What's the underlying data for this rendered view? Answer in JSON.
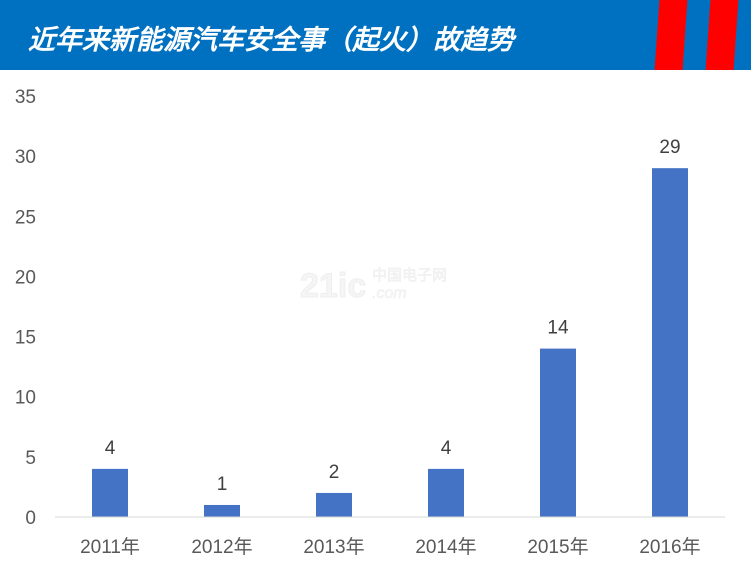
{
  "header": {
    "title": "近年来新能源汽车安全事（起火）故趋势",
    "background": "#0070c0",
    "stripe_color": "#ff0000"
  },
  "watermark": "21ic.com 中国电子网",
  "chart_data": {
    "type": "bar",
    "title": "",
    "categories": [
      "2011年",
      "2012年",
      "2013年",
      "2014年",
      "2015年",
      "2016年"
    ],
    "values": [
      4,
      1,
      2,
      4,
      14,
      29
    ],
    "data_labels": [
      "4",
      "1",
      "2",
      "4",
      "14",
      "29"
    ],
    "xlabel": "",
    "ylabel": "",
    "ylim": [
      0,
      35
    ],
    "yticks": [
      "0",
      "5",
      "10",
      "15",
      "20",
      "25",
      "30",
      "35"
    ],
    "grid": false,
    "legend": "none",
    "bar_color": "#4472c4"
  }
}
